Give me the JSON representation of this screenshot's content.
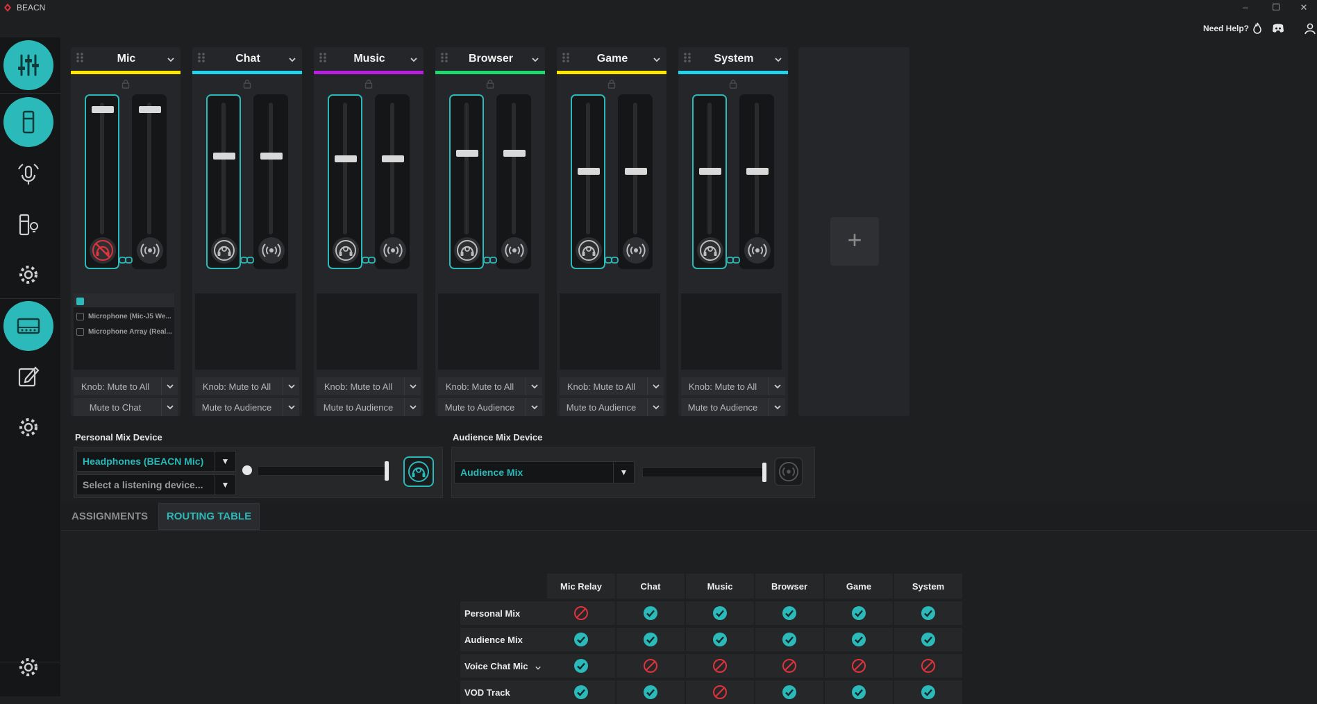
{
  "window": {
    "title": "BEACN"
  },
  "topbar": {
    "help_label": "Need Help?"
  },
  "sidebar": {
    "items": [
      {
        "name": "mixer",
        "icon": "sliders-icon"
      },
      {
        "name": "device",
        "icon": "device-icon"
      },
      {
        "name": "mic",
        "icon": "mic-settings-icon"
      },
      {
        "name": "lighting",
        "icon": "lighting-icon"
      },
      {
        "name": "settings",
        "icon": "gear-icon"
      },
      {
        "name": "mix-create",
        "icon": "mix-create-icon"
      },
      {
        "name": "edit",
        "icon": "edit-icon"
      },
      {
        "name": "settings-2",
        "icon": "gear-icon"
      },
      {
        "name": "app-settings",
        "icon": "gear-icon"
      }
    ]
  },
  "channels": [
    {
      "name": "Mic",
      "color": "#ffe600",
      "personal_level": 0.97,
      "audience_level": 0.97,
      "personal_muted": true,
      "knob_action": "Knob: Mute to All",
      "mute_action": "Mute to Chat",
      "devices": [
        {
          "label": "",
          "checked": true
        },
        {
          "label": "Microphone (Mic-J5 We...",
          "checked": false
        },
        {
          "label": "Microphone Array (Real...",
          "checked": false
        }
      ]
    },
    {
      "name": "Chat",
      "color": "#22d3ee",
      "personal_level": 0.6,
      "audience_level": 0.6,
      "personal_muted": false,
      "knob_action": "Knob: Mute to All",
      "mute_action": "Mute to Audience",
      "devices": []
    },
    {
      "name": "Music",
      "color": "#b81fe0",
      "personal_level": 0.58,
      "audience_level": 0.58,
      "personal_muted": false,
      "knob_action": "Knob: Mute to All",
      "mute_action": "Mute to Audience",
      "devices": []
    },
    {
      "name": "Browser",
      "color": "#20d870",
      "personal_level": 0.62,
      "audience_level": 0.62,
      "personal_muted": false,
      "knob_action": "Knob: Mute to All",
      "mute_action": "Mute to Audience",
      "devices": []
    },
    {
      "name": "Game",
      "color": "#ffe600",
      "personal_level": 0.48,
      "audience_level": 0.48,
      "personal_muted": false,
      "knob_action": "Knob: Mute to All",
      "mute_action": "Mute to Audience",
      "devices": []
    },
    {
      "name": "System",
      "color": "#22d3ee",
      "personal_level": 0.48,
      "audience_level": 0.48,
      "personal_muted": false,
      "knob_action": "Knob: Mute to All",
      "mute_action": "Mute to Audience",
      "devices": []
    }
  ],
  "add_channel": {
    "label": "+"
  },
  "personal_mix": {
    "title": "Personal Mix Device",
    "device": "Headphones (BEACN Mic)",
    "listening_placeholder": "Select a listening device...",
    "level": 1.0
  },
  "audience_mix": {
    "title": "Audience Mix Device",
    "device": "Audience Mix",
    "level": 1.0
  },
  "tabs": [
    {
      "label": "ASSIGNMENTS",
      "active": false
    },
    {
      "label": "ROUTING TABLE",
      "active": true
    }
  ],
  "routing": {
    "columns": [
      "Mic Relay",
      "Chat",
      "Music",
      "Browser",
      "Game",
      "System"
    ],
    "rows": [
      {
        "label": "Personal Mix",
        "has_dropdown": false,
        "cells": [
          "blocked",
          "on",
          "on",
          "on",
          "on",
          "on"
        ]
      },
      {
        "label": "Audience Mix",
        "has_dropdown": false,
        "cells": [
          "on",
          "on",
          "on",
          "on",
          "on",
          "on"
        ]
      },
      {
        "label": "Voice Chat Mic",
        "has_dropdown": true,
        "cells": [
          "on",
          "blocked",
          "blocked",
          "blocked",
          "blocked",
          "blocked"
        ]
      },
      {
        "label": "VOD Track",
        "has_dropdown": false,
        "cells": [
          "on",
          "on",
          "blocked",
          "on",
          "on",
          "on"
        ]
      }
    ]
  },
  "colors": {
    "accent": "#2bb9b9",
    "danger": "#e0333c"
  }
}
